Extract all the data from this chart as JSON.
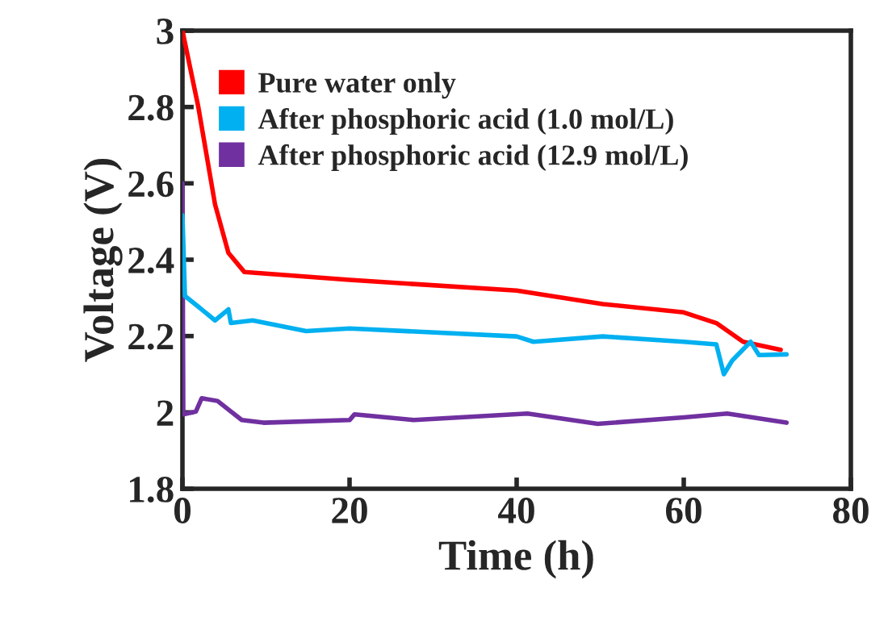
{
  "chart_data": {
    "type": "line",
    "xlabel": "Time (h)",
    "ylabel": "Voltage (V)",
    "xlim": [
      0,
      80
    ],
    "xticks": [
      0,
      20,
      40,
      60,
      80
    ],
    "ylim": [
      1.8,
      3
    ],
    "yticks": [
      1.8,
      2,
      2.2,
      2.4,
      2.6,
      2.8,
      3
    ],
    "legend": "top left",
    "grid": false,
    "series": [
      {
        "name": "Pure water only",
        "color": "#ff0000",
        "x": [
          0,
          1.9,
          3.9,
          5.5,
          7.4,
          20,
          40,
          50.3,
          60,
          63.9,
          67.1,
          71.6
        ],
        "values": [
          3.0,
          2.8,
          2.545,
          2.418,
          2.368,
          2.347,
          2.319,
          2.284,
          2.262,
          2.234,
          2.185,
          2.164
        ]
      },
      {
        "name": "After phosphoric acid (1.0 mol/L)",
        "color": "#00b0f0",
        "x": [
          0,
          0.3,
          1.9,
          3.9,
          5.5,
          5.8,
          8.4,
          14.8,
          20,
          40,
          42,
          50.3,
          60,
          63.9,
          64.8,
          65.8,
          68,
          69,
          72.3
        ],
        "values": [
          2.516,
          2.305,
          2.277,
          2.241,
          2.27,
          2.234,
          2.241,
          2.213,
          2.22,
          2.199,
          2.185,
          2.199,
          2.185,
          2.178,
          2.1,
          2.136,
          2.185,
          2.15,
          2.152
        ]
      },
      {
        "name": "After phosphoric acid (12.9 mol/L)",
        "color": "#7030a0",
        "x": [
          0,
          0.1,
          1.6,
          2.3,
          4.2,
          7.1,
          9.7,
          20,
          20.6,
          27.7,
          41.3,
          49.7,
          60,
          65.2,
          72.3
        ],
        "values": [
          2.6,
          1.995,
          2.002,
          2.037,
          2.03,
          1.98,
          1.973,
          1.98,
          1.995,
          1.98,
          1.997,
          1.97,
          1.987,
          1.997,
          1.973
        ]
      }
    ]
  }
}
